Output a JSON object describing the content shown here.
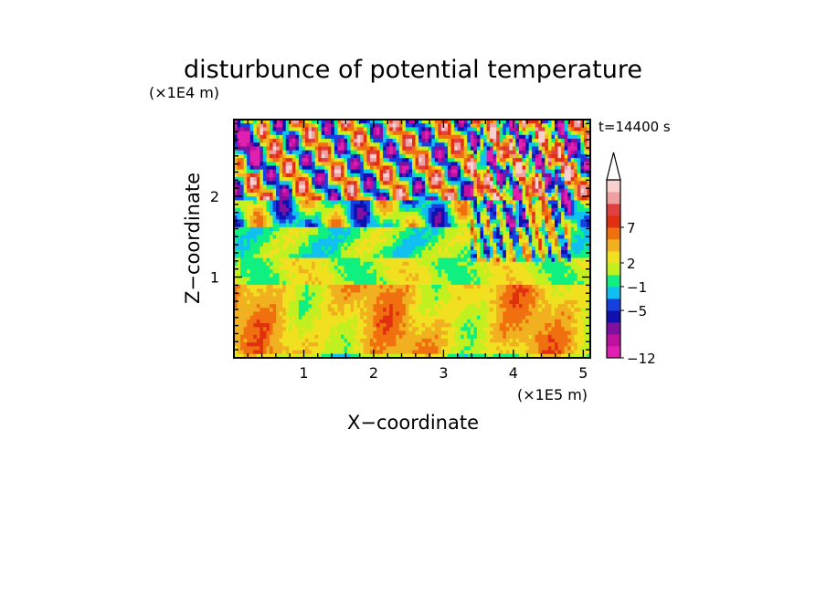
{
  "chart_data": {
    "type": "heatmap",
    "title": "disturbunce of potential temperature",
    "xlabel": "X−coordinate",
    "ylabel": "Z−coordinate",
    "x_unit": "(×1E5 m)",
    "y_unit": "(×1E4 m)",
    "time_label": "t=14400 s",
    "xlim": [
      0,
      5.1
    ],
    "ylim": [
      0,
      2.95
    ],
    "x_ticks": [
      1,
      2,
      3,
      4,
      5
    ],
    "y_ticks": [
      1,
      2
    ],
    "x_tick_labels": [
      "1",
      "2",
      "3",
      "4",
      "5"
    ],
    "y_tick_labels": [
      "1",
      "2"
    ],
    "colorbar": {
      "labels": [
        "−12",
        "−5",
        "−1",
        "2",
        "7"
      ],
      "label_positions": [
        0,
        4,
        6,
        8,
        11
      ],
      "colors": [
        "#e020b0",
        "#c010a0",
        "#8010a0",
        "#1010b0",
        "#1840e0",
        "#10c0f0",
        "#10f080",
        "#c0f020",
        "#f0e020",
        "#f0b020",
        "#f07010",
        "#e03010",
        "#e04040",
        "#f0a0a0",
        "#f8d0d0"
      ],
      "extend_max": true
    }
  }
}
